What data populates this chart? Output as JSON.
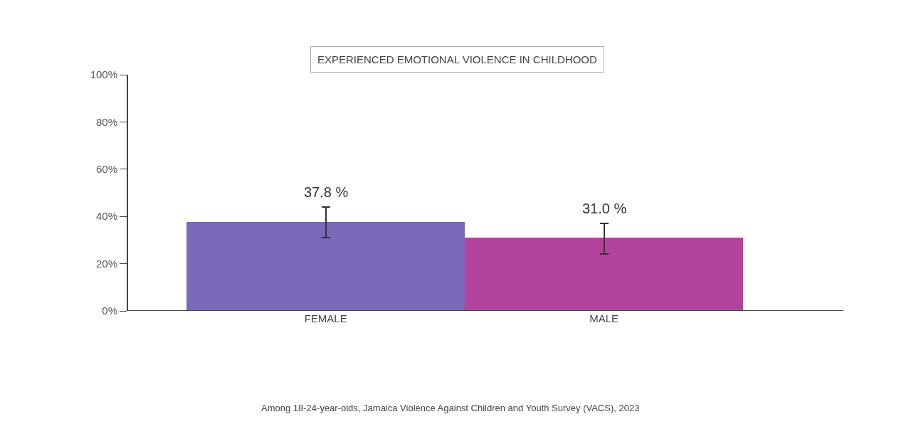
{
  "chart_data": {
    "type": "bar",
    "title": "EXPERIENCED EMOTIONAL VIOLENCE IN CHILDHOOD",
    "categories": [
      "FEMALE",
      "MALE"
    ],
    "values": [
      37.8,
      31.0
    ],
    "colors": [
      "#7b68b8",
      "#b2449e"
    ],
    "errors": [
      [
        31,
        44
      ],
      [
        24,
        37
      ]
    ],
    "value_labels": [
      "37.8 %",
      "31.0 %"
    ],
    "ylim": [
      0,
      100
    ],
    "yticks": [
      {
        "value": 0,
        "label": "0%"
      },
      {
        "value": 20,
        "label": "20%"
      },
      {
        "value": 40,
        "label": "40%"
      },
      {
        "value": 60,
        "label": "60%"
      },
      {
        "value": 80,
        "label": "80%"
      },
      {
        "value": 100,
        "label": "100%"
      }
    ],
    "annotations": [
      "Among 18-24-year-olds, Jamaica Violence Against Children and Youth Survey (VACS), 2023"
    ]
  }
}
